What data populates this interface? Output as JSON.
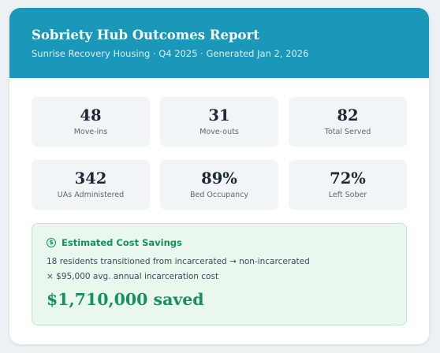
{
  "report": {
    "title": "Sobriety Hub Outcomes Report",
    "subtitle": "Sunrise Recovery Housing · Q4 2025 · Generated Jan 2, 2026"
  },
  "stats": [
    {
      "value": "48",
      "label": "Move-ins"
    },
    {
      "value": "31",
      "label": "Move-outs"
    },
    {
      "value": "82",
      "label": "Total Served"
    },
    {
      "value": "342",
      "label": "UAs Administered"
    },
    {
      "value": "89%",
      "label": "Bed Occupancy"
    },
    {
      "value": "72%",
      "label": "Left Sober"
    }
  ],
  "savings": {
    "icon": "dollar-circle-icon",
    "title": "Estimated Cost Savings",
    "line1": "18 residents transitioned from incarcerated → non-incarcerated",
    "line2": "× $95,000 avg. annual incarceration cost",
    "total": "$1,710,000 saved"
  },
  "colors": {
    "header": "#1b97b9",
    "accent_green": "#17915a",
    "savings_bg": "#e9f7ef"
  }
}
